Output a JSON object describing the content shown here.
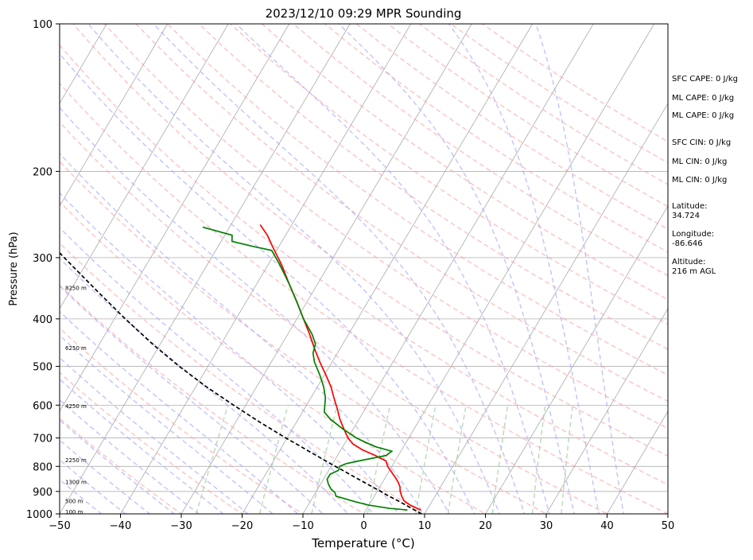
{
  "chart_data": {
    "type": "line",
    "subtype": "skew-t log-p",
    "title": "2023/12/10 09:29 MPR Sounding",
    "xlabel": "Temperature (°C)",
    "ylabel": "Pressure (hPa)",
    "xlim": [
      -50,
      50
    ],
    "ylim": [
      1000,
      100
    ],
    "y_scale": "log",
    "grid": true,
    "x_ticks": [
      "−50",
      "−40",
      "−30",
      "−20",
      "−10",
      "0",
      "10",
      "20",
      "30",
      "40",
      "50"
    ],
    "y_ticks": [
      "100",
      "200",
      "300",
      "400",
      "500",
      "600",
      "700",
      "800",
      "900",
      "1000"
    ],
    "height_labels": [
      {
        "label": "100 m",
        "pressure": 988
      },
      {
        "label": "500 m",
        "pressure": 940
      },
      {
        "label": "1300 m",
        "pressure": 860
      },
      {
        "label": "2250 m",
        "pressure": 775
      },
      {
        "label": "4250 m",
        "pressure": 602
      },
      {
        "label": "6250 m",
        "pressure": 458
      },
      {
        "label": "8250 m",
        "pressure": 345
      }
    ],
    "stats": [
      "SFC CAPE: 0 J/kg",
      "ML CAPE: 0 J/kg",
      "ML CAPE: 0 J/kg",
      "SFC CIN: 0 J/kg",
      "ML CIN: 0 J/kg",
      "ML CIN: 0 J/kg"
    ],
    "location": {
      "latitude_label": "Latitude:",
      "latitude": "34.724",
      "longitude_label": "Longitude:",
      "longitude": "-86.646",
      "altitude_label": "Altitude:",
      "altitude": "216 m AGL"
    },
    "series": [
      {
        "role": "temperature",
        "color": "#ff0000",
        "points": [
          {
            "p": 982,
            "t": 9.0
          },
          {
            "p": 960,
            "t": 6.8
          },
          {
            "p": 940,
            "t": 5.3
          },
          {
            "p": 920,
            "t": 4.5
          },
          {
            "p": 900,
            "t": 3.8
          },
          {
            "p": 880,
            "t": 3.3
          },
          {
            "p": 860,
            "t": 2.5
          },
          {
            "p": 840,
            "t": 1.5
          },
          {
            "p": 820,
            "t": 0.4
          },
          {
            "p": 800,
            "t": -0.7
          },
          {
            "p": 780,
            "t": -1.5
          },
          {
            "p": 760,
            "t": -3.8
          },
          {
            "p": 740,
            "t": -6.5
          },
          {
            "p": 720,
            "t": -8.6
          },
          {
            "p": 700,
            "t": -10.0
          },
          {
            "p": 670,
            "t": -11.6
          },
          {
            "p": 640,
            "t": -13.2
          },
          {
            "p": 610,
            "t": -14.6
          },
          {
            "p": 580,
            "t": -16.2
          },
          {
            "p": 550,
            "t": -17.8
          },
          {
            "p": 520,
            "t": -19.8
          },
          {
            "p": 490,
            "t": -22.0
          },
          {
            "p": 460,
            "t": -24.2
          },
          {
            "p": 430,
            "t": -26.4
          },
          {
            "p": 400,
            "t": -28.9
          },
          {
            "p": 370,
            "t": -31.6
          },
          {
            "p": 340,
            "t": -34.6
          },
          {
            "p": 310,
            "t": -37.8
          },
          {
            "p": 285,
            "t": -41.0
          },
          {
            "p": 270,
            "t": -43.0
          },
          {
            "p": 257,
            "t": -45.2
          }
        ]
      },
      {
        "role": "dewpoint",
        "color": "#008000",
        "points": [
          {
            "p": 982,
            "t": 6.8
          },
          {
            "p": 975,
            "t": 3.8
          },
          {
            "p": 960,
            "t": 0.0
          },
          {
            "p": 945,
            "t": -2.5
          },
          {
            "p": 930,
            "t": -4.8
          },
          {
            "p": 920,
            "t": -6.3
          },
          {
            "p": 905,
            "t": -6.8
          },
          {
            "p": 890,
            "t": -7.8
          },
          {
            "p": 870,
            "t": -8.7
          },
          {
            "p": 850,
            "t": -9.4
          },
          {
            "p": 830,
            "t": -9.4
          },
          {
            "p": 815,
            "t": -8.4
          },
          {
            "p": 800,
            "t": -8.6
          },
          {
            "p": 790,
            "t": -7.8
          },
          {
            "p": 780,
            "t": -6.0
          },
          {
            "p": 760,
            "t": -2.0
          },
          {
            "p": 745,
            "t": -1.5
          },
          {
            "p": 730,
            "t": -4.5
          },
          {
            "p": 715,
            "t": -6.6
          },
          {
            "p": 700,
            "t": -8.6
          },
          {
            "p": 670,
            "t": -11.8
          },
          {
            "p": 640,
            "t": -14.8
          },
          {
            "p": 620,
            "t": -16.4
          },
          {
            "p": 600,
            "t": -17.0
          },
          {
            "p": 580,
            "t": -17.6
          },
          {
            "p": 550,
            "t": -19.0
          },
          {
            "p": 520,
            "t": -20.8
          },
          {
            "p": 490,
            "t": -22.9
          },
          {
            "p": 470,
            "t": -24.0
          },
          {
            "p": 450,
            "t": -24.5
          },
          {
            "p": 430,
            "t": -26.0
          },
          {
            "p": 400,
            "t": -28.9
          },
          {
            "p": 370,
            "t": -31.6
          },
          {
            "p": 340,
            "t": -34.6
          },
          {
            "p": 310,
            "t": -38.1
          },
          {
            "p": 290,
            "t": -40.8
          },
          {
            "p": 285,
            "t": -44.0
          },
          {
            "p": 278,
            "t": -48.2
          },
          {
            "p": 270,
            "t": -48.8
          },
          {
            "p": 260,
            "t": -54.4
          }
        ]
      },
      {
        "role": "parcel",
        "color": "#000000",
        "dashed": true,
        "points": [
          {
            "p": 1000,
            "t": 9.5
          },
          {
            "p": 980,
            "t": 7.8
          },
          {
            "p": 960,
            "t": 6.1
          },
          {
            "p": 940,
            "t": 4.3
          },
          {
            "p": 920,
            "t": 2.4
          },
          {
            "p": 900,
            "t": 0.6
          },
          {
            "p": 880,
            "t": -1.3
          },
          {
            "p": 860,
            "t": -3.2
          },
          {
            "p": 840,
            "t": -5.2
          },
          {
            "p": 820,
            "t": -7.2
          },
          {
            "p": 800,
            "t": -9.3
          },
          {
            "p": 780,
            "t": -11.4
          },
          {
            "p": 760,
            "t": -13.5
          },
          {
            "p": 740,
            "t": -15.7
          },
          {
            "p": 720,
            "t": -17.9
          },
          {
            "p": 700,
            "t": -20.2
          },
          {
            "p": 650,
            "t": -26.0
          },
          {
            "p": 600,
            "t": -32.0
          },
          {
            "p": 550,
            "t": -38.3
          },
          {
            "p": 500,
            "t": -44.7
          },
          {
            "p": 450,
            "t": -51.3
          },
          {
            "p": 400,
            "t": -58.2
          },
          {
            "p": 350,
            "t": -65.7
          },
          {
            "p": 300,
            "t": -74.2
          },
          {
            "p": 262,
            "t": -81.6
          }
        ]
      }
    ],
    "reference_lines": {
      "isotherm_color": "#aaaaaa",
      "dry_adiabat_color": "#ff9999",
      "moist_adiabat_color": "#aaaaff",
      "mixing_ratio_color": "#99cc99"
    }
  }
}
